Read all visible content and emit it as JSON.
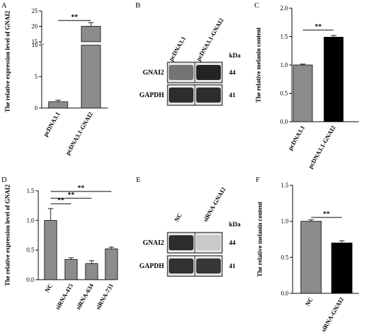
{
  "figure": {
    "panels": [
      {
        "letter": "A",
        "type": "bar",
        "ylabel": "The relative expression level of GNAI2",
        "categories": [
          "pcDNA3.1",
          "pcDNA3.1-GNAI2"
        ],
        "values": [
          1.0,
          20.0
        ],
        "errors": [
          0.25,
          1.2
        ],
        "colors": [
          "#8c8c8c",
          "#8c8c8c"
        ],
        "ytick_labels": [
          "0",
          "5",
          "10",
          "15",
          "20",
          "25"
        ],
        "significance": [
          {
            "from": 0,
            "to": 1,
            "label": "**"
          }
        ]
      },
      {
        "letter": "B",
        "type": "blot",
        "lanes": [
          "pcDNA3.1",
          "pcDNA3.1-GNAI2"
        ],
        "unit": "kDa",
        "bands": [
          {
            "name": "GNAI2",
            "kda": "44",
            "intensity": [
              0.55,
              0.95
            ]
          },
          {
            "name": "GAPDH",
            "kda": "41",
            "intensity": [
              0.9,
              0.9
            ]
          }
        ]
      },
      {
        "letter": "C",
        "type": "bar",
        "ylabel": "The relative melanin content",
        "categories": [
          "pcDNA3.1",
          "pcDNA3.1-GNAI2"
        ],
        "values": [
          1.0,
          1.49
        ],
        "errors": [
          0.015,
          0.03
        ],
        "colors": [
          "#8c8c8c",
          "#000000"
        ],
        "ylim": [
          0,
          2.0
        ],
        "ytick_labels": [
          "0.0",
          "0.5",
          "1.0",
          "1.5",
          "2.0"
        ],
        "significance": [
          {
            "from": 0,
            "to": 1,
            "label": "**"
          }
        ]
      },
      {
        "letter": "D",
        "type": "bar",
        "ylabel": "The relative expression level of GNAI2",
        "categories": [
          "NC",
          "siRNA-415",
          "siRNA-634",
          "siRNA-731"
        ],
        "values": [
          1.0,
          0.34,
          0.27,
          0.52
        ],
        "errors": [
          0.2,
          0.03,
          0.05,
          0.03
        ],
        "colors": [
          "#8c8c8c",
          "#8c8c8c",
          "#8c8c8c",
          "#8c8c8c"
        ],
        "ylim": [
          0,
          1.5
        ],
        "ytick_labels": [
          "0.0",
          "0.5",
          "1.0",
          "1.5"
        ],
        "significance": [
          {
            "from": 0,
            "to": 1,
            "label": "**"
          },
          {
            "from": 0,
            "to": 2,
            "label": "**"
          },
          {
            "from": 0,
            "to": 3,
            "label": "**"
          }
        ]
      },
      {
        "letter": "E",
        "type": "blot",
        "lanes": [
          "NC",
          "siRNA-GNAI2"
        ],
        "unit": "kDa",
        "bands": [
          {
            "name": "GNAI2",
            "kda": "44",
            "intensity": [
              0.9,
              0.12
            ]
          },
          {
            "name": "GAPDH",
            "kda": "41",
            "intensity": [
              0.88,
              0.85
            ]
          }
        ]
      },
      {
        "letter": "F",
        "type": "bar",
        "ylabel": "The relative melanin content",
        "categories": [
          "NC",
          "siRNA-GNAI2"
        ],
        "values": [
          1.0,
          0.7
        ],
        "errors": [
          0.02,
          0.03
        ],
        "colors": [
          "#8c8c8c",
          "#000000"
        ],
        "ylim": [
          0,
          1.5
        ],
        "ytick_labels": [
          "0.0",
          "0.5",
          "1.0",
          "1.5"
        ],
        "significance": [
          {
            "from": 0,
            "to": 1,
            "label": "**"
          }
        ]
      }
    ]
  },
  "chart_data": [
    {
      "type": "bar",
      "panel": "A",
      "categories": [
        "pcDNA3.1",
        "pcDNA3.1-GNAI2"
      ],
      "values": [
        1.0,
        20.0
      ],
      "errors": [
        0.25,
        1.2
      ],
      "ylabel": "The relative expression level of GNAI2",
      "axis_break": [
        10,
        15
      ]
    },
    {
      "type": "bar",
      "panel": "C",
      "categories": [
        "pcDNA3.1",
        "pcDNA3.1-GNAI2"
      ],
      "values": [
        1.0,
        1.49
      ],
      "errors": [
        0.015,
        0.03
      ],
      "ylabel": "The relative melanin content",
      "ylim": [
        0,
        2.0
      ]
    },
    {
      "type": "bar",
      "panel": "D",
      "categories": [
        "NC",
        "siRNA-415",
        "siRNA-634",
        "siRNA-731"
      ],
      "values": [
        1.0,
        0.34,
        0.27,
        0.52
      ],
      "errors": [
        0.2,
        0.03,
        0.05,
        0.03
      ],
      "ylabel": "The relative expression level of GNAI2",
      "ylim": [
        0,
        1.5
      ]
    },
    {
      "type": "bar",
      "panel": "F",
      "categories": [
        "NC",
        "siRNA-GNAI2"
      ],
      "values": [
        1.0,
        0.7
      ],
      "errors": [
        0.02,
        0.03
      ],
      "ylabel": "The relative melanin content",
      "ylim": [
        0,
        1.5
      ]
    }
  ]
}
